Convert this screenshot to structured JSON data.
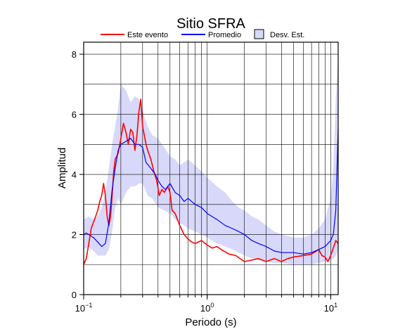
{
  "chart_data": {
    "type": "line",
    "title": "Sitio SFRA",
    "xlabel": "Periodo (s)",
    "ylabel": "Amplitud",
    "x_scale": "log",
    "xlim": [
      0.1,
      11.5
    ],
    "ylim": [
      0,
      8.4
    ],
    "grid": true,
    "legend_position": "top",
    "x_tick_labels": [
      {
        "x": 0.1,
        "base": "10",
        "exp": "−1"
      },
      {
        "x": 1,
        "base": "10",
        "exp": "0"
      },
      {
        "x": 10,
        "base": "10",
        "exp": "1"
      }
    ],
    "y_ticks": [
      0,
      2,
      4,
      6,
      8
    ],
    "legend": [
      {
        "label": "Este evento",
        "kind": "line",
        "color": "#ff0000"
      },
      {
        "label": "Promedio",
        "kind": "line",
        "color": "#0000ff"
      },
      {
        "label": "Desv. Est.",
        "kind": "box",
        "color": "#d8d8fa"
      }
    ],
    "series": [
      {
        "name": "Este evento",
        "color": "#ff0000",
        "x": [
          0.1,
          0.105,
          0.11,
          0.115,
          0.12,
          0.125,
          0.13,
          0.135,
          0.14,
          0.145,
          0.15,
          0.155,
          0.16,
          0.165,
          0.17,
          0.175,
          0.18,
          0.19,
          0.2,
          0.21,
          0.22,
          0.23,
          0.24,
          0.25,
          0.26,
          0.27,
          0.28,
          0.29,
          0.3,
          0.31,
          0.32,
          0.33,
          0.35,
          0.37,
          0.39,
          0.41,
          0.43,
          0.45,
          0.48,
          0.5,
          0.52,
          0.55,
          0.6,
          0.65,
          0.7,
          0.75,
          0.8,
          0.9,
          1.0,
          1.1,
          1.2,
          1.3,
          1.5,
          1.7,
          2.0,
          2.3,
          2.6,
          3.0,
          3.5,
          4.0,
          4.5,
          5.0,
          6.0,
          7.0,
          8.0,
          8.5,
          9.0,
          9.5,
          10.0,
          10.5,
          11.0,
          11.5
        ],
        "values": [
          1.0,
          1.2,
          1.7,
          2.2,
          2.4,
          2.6,
          2.8,
          3.1,
          3.3,
          3.7,
          3.3,
          2.6,
          2.3,
          2.6,
          3.3,
          4.1,
          4.5,
          4.7,
          5.2,
          5.7,
          5.4,
          5.0,
          5.5,
          5.4,
          4.8,
          5.3,
          6.1,
          6.5,
          5.6,
          5.3,
          5.0,
          4.8,
          4.5,
          4.1,
          3.8,
          3.3,
          3.5,
          3.4,
          3.6,
          3.4,
          2.8,
          2.7,
          2.3,
          2.0,
          1.85,
          1.75,
          1.7,
          1.8,
          1.65,
          1.55,
          1.6,
          1.5,
          1.35,
          1.3,
          1.1,
          1.15,
          1.2,
          1.1,
          1.2,
          1.1,
          1.2,
          1.25,
          1.3,
          1.35,
          1.5,
          1.3,
          1.25,
          1.1,
          1.3,
          1.55,
          1.8,
          1.7
        ]
      },
      {
        "name": "Promedio",
        "color": "#0000ff",
        "x": [
          0.1,
          0.105,
          0.11,
          0.12,
          0.13,
          0.14,
          0.15,
          0.16,
          0.17,
          0.18,
          0.19,
          0.2,
          0.22,
          0.24,
          0.26,
          0.28,
          0.3,
          0.32,
          0.35,
          0.38,
          0.4,
          0.43,
          0.46,
          0.5,
          0.55,
          0.6,
          0.65,
          0.7,
          0.8,
          0.9,
          1.0,
          1.2,
          1.4,
          1.6,
          1.8,
          2.0,
          2.3,
          2.6,
          3.0,
          3.5,
          4.0,
          5.0,
          6.0,
          7.0,
          8.0,
          9.0,
          10.0,
          10.5,
          11.0,
          11.5
        ],
        "values": [
          2.0,
          2.05,
          2.0,
          1.9,
          1.75,
          1.6,
          1.7,
          2.4,
          3.5,
          4.2,
          4.8,
          5.0,
          5.1,
          5.2,
          5.0,
          5.0,
          4.9,
          4.4,
          4.2,
          4.0,
          3.8,
          3.6,
          3.5,
          3.7,
          3.4,
          3.3,
          3.1,
          3.2,
          3.0,
          2.9,
          2.7,
          2.5,
          2.3,
          2.2,
          2.1,
          2.0,
          1.8,
          1.7,
          1.6,
          1.45,
          1.4,
          1.4,
          1.35,
          1.4,
          1.5,
          1.6,
          1.8,
          2.0,
          2.8,
          5.5
        ]
      }
    ],
    "std_band": {
      "name": "Desv. Est.",
      "color": "#d8d8fa",
      "x": [
        0.1,
        0.11,
        0.12,
        0.13,
        0.14,
        0.15,
        0.16,
        0.17,
        0.18,
        0.19,
        0.2,
        0.22,
        0.24,
        0.26,
        0.28,
        0.3,
        0.33,
        0.36,
        0.4,
        0.45,
        0.5,
        0.55,
        0.6,
        0.7,
        0.8,
        0.9,
        1.0,
        1.2,
        1.4,
        1.6,
        1.8,
        2.0,
        2.3,
        2.6,
        3.0,
        3.5,
        4.0,
        5.0,
        6.0,
        7.0,
        8.0,
        9.0,
        10.0,
        10.5,
        11.0,
        11.5
      ],
      "upper": [
        2.5,
        2.6,
        2.5,
        2.6,
        2.9,
        3.4,
        4.2,
        5.0,
        5.6,
        6.2,
        7.0,
        6.8,
        6.4,
        6.6,
        6.5,
        6.1,
        5.6,
        5.3,
        5.2,
        4.9,
        4.6,
        4.5,
        4.3,
        4.5,
        4.3,
        4.1,
        3.9,
        3.6,
        3.4,
        3.1,
        2.9,
        2.8,
        2.6,
        2.5,
        2.3,
        2.1,
        2.0,
        1.9,
        1.9,
        2.0,
        2.2,
        2.5,
        3.2,
        4.2,
        6.5,
        8.0
      ],
      "lower": [
        1.5,
        1.6,
        1.45,
        1.3,
        1.3,
        1.3,
        1.5,
        2.1,
        2.9,
        3.2,
        3.0,
        3.4,
        3.6,
        3.6,
        3.7,
        3.7,
        3.3,
        3.2,
        2.9,
        2.8,
        2.7,
        2.5,
        2.4,
        2.2,
        2.1,
        2.0,
        1.9,
        1.7,
        1.6,
        1.5,
        1.4,
        1.3,
        1.2,
        1.15,
        1.1,
        1.05,
        1.05,
        1.0,
        1.0,
        1.0,
        1.05,
        1.1,
        1.15,
        1.2,
        1.3,
        1.5
      ]
    }
  }
}
